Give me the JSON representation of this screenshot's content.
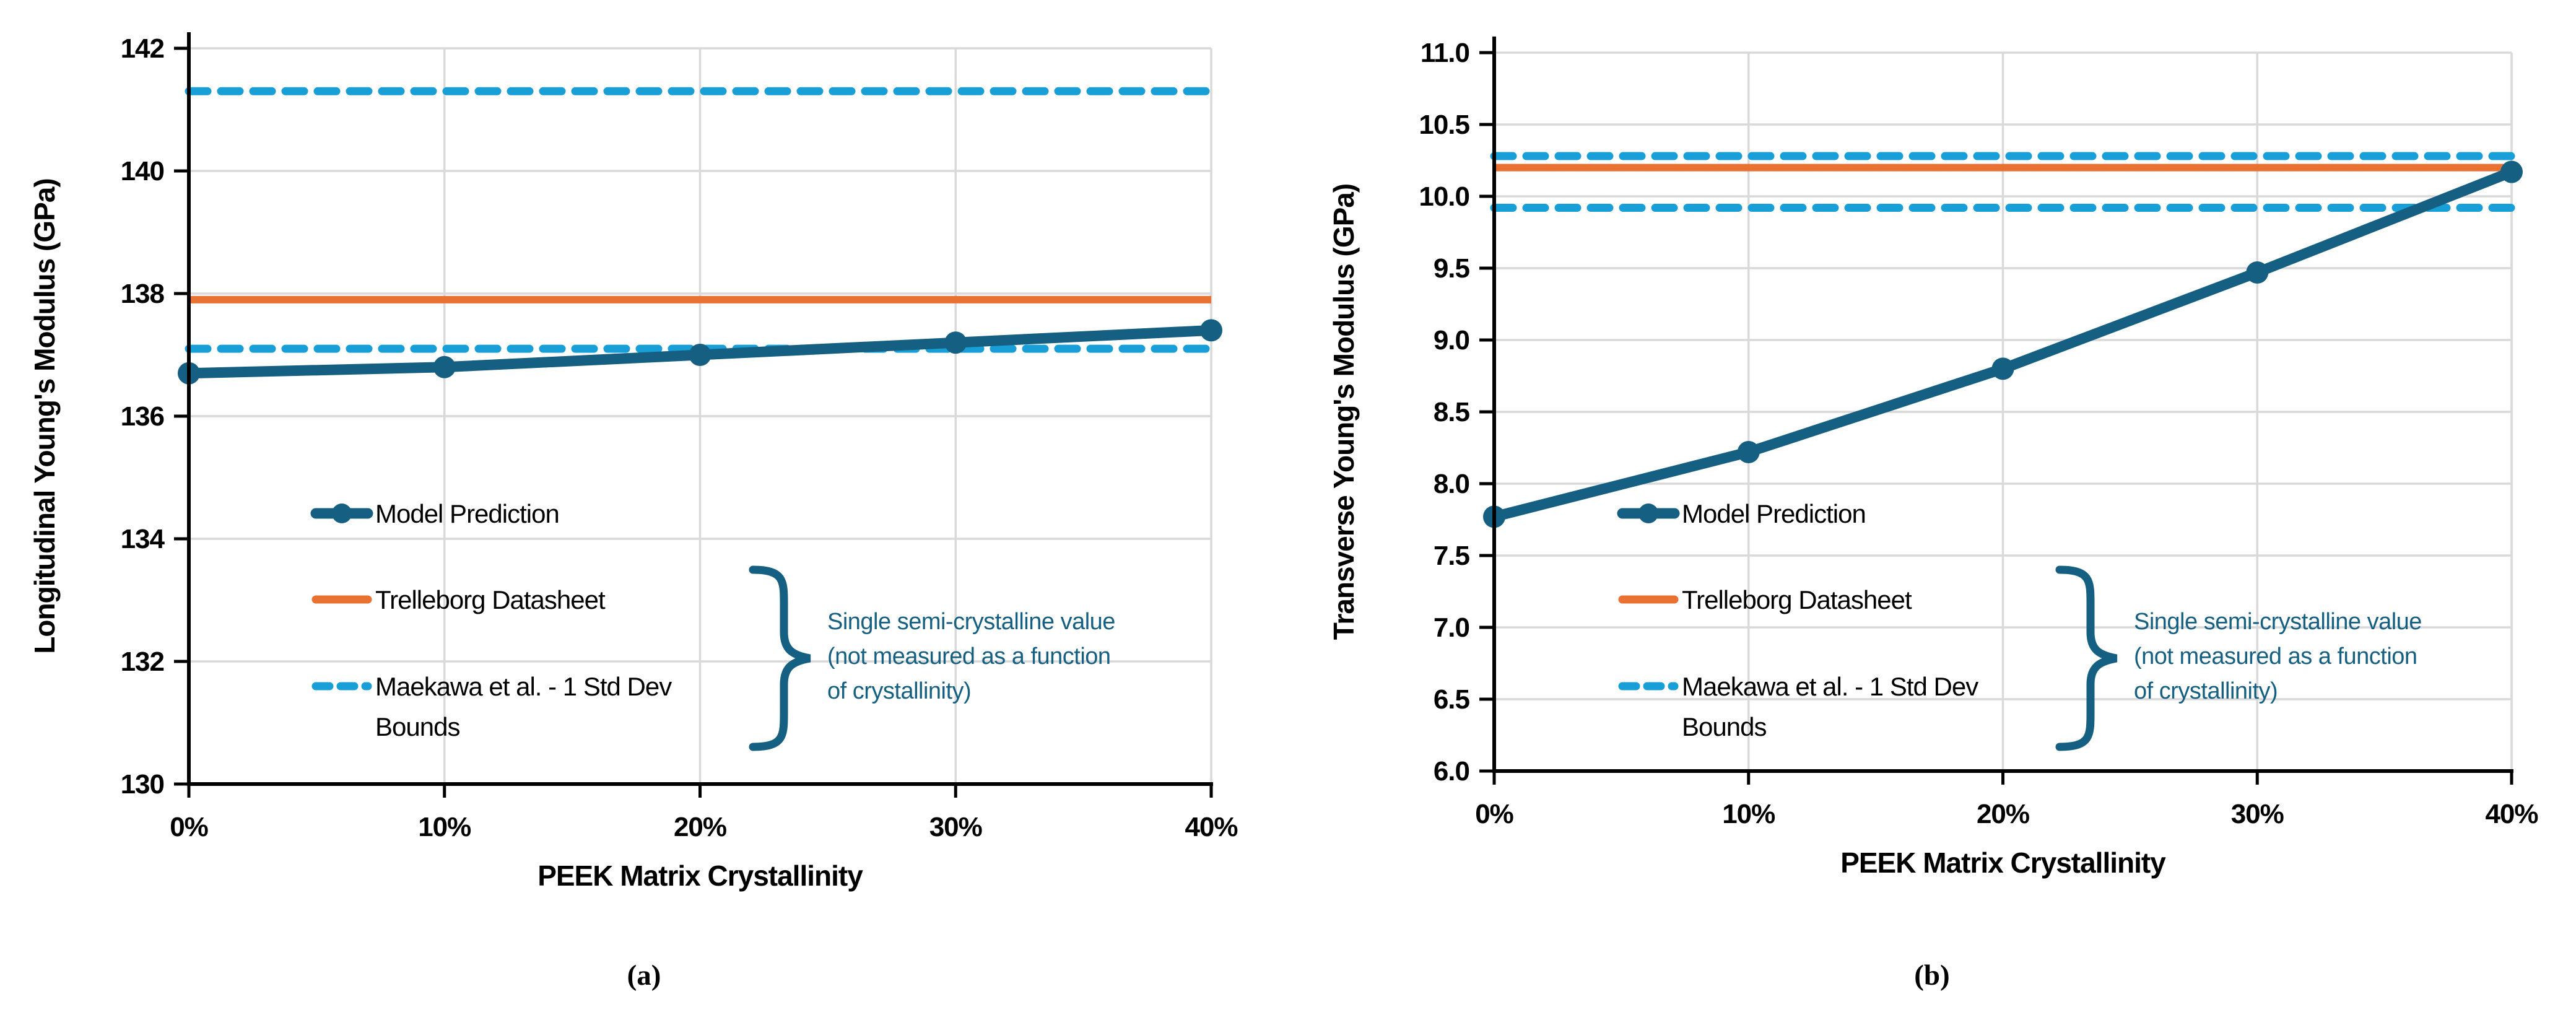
{
  "page": {
    "background": "#FFFFFF"
  },
  "colors": {
    "model": "#156082",
    "datasheet": "#E97132",
    "bounds": "#189FD8",
    "annotation": "#156082",
    "gridline": "#D9D9D9",
    "axis": "#000000",
    "text": "#000000"
  },
  "chart_data": [
    {
      "id": "a",
      "type": "line",
      "caption": "(a)",
      "xlabel": "PEEK Matrix Crystallinity",
      "ylabel": "Longitudinal Young's Modulus (GPa)",
      "categories": [
        "0%",
        "10%",
        "20%",
        "30%",
        "40%"
      ],
      "ylim": [
        130,
        142
      ],
      "ytick_step": 2,
      "ytick_decimals": 0,
      "grid": true,
      "legend_position": "inside-lower-left",
      "series": [
        {
          "name": "Model Prediction",
          "style": "line-marker",
          "color_key": "model",
          "values": [
            136.7,
            136.8,
            137.0,
            137.2,
            137.4
          ]
        },
        {
          "name": "Trelleborg Datasheet",
          "style": "line",
          "color_key": "datasheet",
          "value": 137.9
        },
        {
          "name": "Maekawa et al. - 1 Std Dev Bounds",
          "style": "dashed-bounds",
          "color_key": "bounds",
          "upper": 141.3,
          "lower": 137.1
        }
      ],
      "legend_lines": [
        [
          "Model Prediction"
        ],
        [
          "Trelleborg Datasheet"
        ],
        [
          "Maekawa et al. - 1 Std Dev",
          "Bounds"
        ]
      ],
      "annotation_lines": [
        "Single semi-crystalline value",
        "(not measured as a function",
        "of crystallinity)"
      ]
    },
    {
      "id": "b",
      "type": "line",
      "caption": "(b)",
      "xlabel": "PEEK Matrix Crystallinity",
      "ylabel": "Transverse Young's Modulus (GPa)",
      "categories": [
        "0%",
        "10%",
        "20%",
        "30%",
        "40%"
      ],
      "ylim": [
        6.0,
        11.0
      ],
      "ytick_step": 0.5,
      "ytick_decimals": 1,
      "grid": true,
      "legend_position": "inside-lower-left",
      "series": [
        {
          "name": "Model Prediction",
          "style": "line-marker",
          "color_key": "model",
          "values": [
            7.77,
            8.22,
            8.8,
            9.47,
            10.17
          ]
        },
        {
          "name": "Trelleborg Datasheet",
          "style": "line",
          "color_key": "datasheet",
          "value": 10.2
        },
        {
          "name": "Maekawa et al. - 1 Std Dev Bounds",
          "style": "dashed-bounds",
          "color_key": "bounds",
          "upper": 10.28,
          "lower": 9.92
        }
      ],
      "legend_lines": [
        [
          "Model Prediction"
        ],
        [
          "Trelleborg Datasheet"
        ],
        [
          "Maekawa et al. - 1 Std Dev",
          "Bounds"
        ]
      ],
      "annotation_lines": [
        "Single semi-crystalline value",
        "(not measured as a function",
        "of crystallinity)"
      ]
    }
  ]
}
